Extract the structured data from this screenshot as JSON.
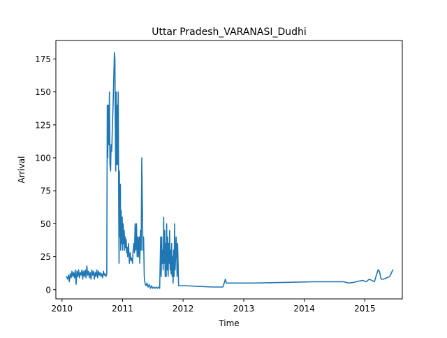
{
  "chart_data": {
    "type": "line",
    "title": "Uttar Pradesh_VARANASI_Dudhi",
    "xlabel": "Time",
    "ylabel": "Arrival",
    "xlim": [
      "2009-11-25",
      "2015-08-15"
    ],
    "ylim": [
      -7,
      189
    ],
    "grid": false,
    "legend": "none",
    "x_ticks": [
      {
        "date": "2010-01-01",
        "label": "2010"
      },
      {
        "date": "2011-01-01",
        "label": "2011"
      },
      {
        "date": "2012-01-01",
        "label": "2012"
      },
      {
        "date": "2013-01-01",
        "label": "2013"
      },
      {
        "date": "2014-01-01",
        "label": "2014"
      },
      {
        "date": "2015-01-01",
        "label": "2015"
      }
    ],
    "y_ticks": [
      0,
      25,
      50,
      75,
      100,
      125,
      150,
      175
    ],
    "series": [
      {
        "color": "#1f77b4",
        "points": [
          [
            "2010-01-28",
            10
          ],
          [
            "2010-02-04",
            8
          ],
          [
            "2010-02-09",
            11
          ],
          [
            "2010-02-14",
            6
          ],
          [
            "2010-02-19",
            12
          ],
          [
            "2010-02-25",
            9
          ],
          [
            "2010-03-02",
            14
          ],
          [
            "2010-03-07",
            10
          ],
          [
            "2010-03-12",
            13
          ],
          [
            "2010-03-17",
            9
          ],
          [
            "2010-03-22",
            15
          ],
          [
            "2010-03-27",
            4
          ],
          [
            "2010-04-01",
            14
          ],
          [
            "2010-04-06",
            10
          ],
          [
            "2010-04-11",
            15
          ],
          [
            "2010-04-16",
            9
          ],
          [
            "2010-04-21",
            13
          ],
          [
            "2010-04-26",
            11
          ],
          [
            "2010-05-01",
            15
          ],
          [
            "2010-05-06",
            8
          ],
          [
            "2010-05-11",
            14
          ],
          [
            "2010-05-16",
            10
          ],
          [
            "2010-05-21",
            15
          ],
          [
            "2010-05-26",
            9
          ],
          [
            "2010-05-31",
            18
          ],
          [
            "2010-06-05",
            11
          ],
          [
            "2010-06-10",
            14
          ],
          [
            "2010-06-15",
            9
          ],
          [
            "2010-06-20",
            13
          ],
          [
            "2010-06-25",
            8
          ],
          [
            "2010-06-30",
            15
          ],
          [
            "2010-07-05",
            11
          ],
          [
            "2010-07-10",
            14
          ],
          [
            "2010-07-15",
            8
          ],
          [
            "2010-07-20",
            13
          ],
          [
            "2010-07-25",
            10
          ],
          [
            "2010-07-30",
            15
          ],
          [
            "2010-08-04",
            9
          ],
          [
            "2010-08-09",
            14
          ],
          [
            "2010-08-14",
            11
          ],
          [
            "2010-08-19",
            13
          ],
          [
            "2010-08-24",
            10
          ],
          [
            "2010-08-29",
            12
          ],
          [
            "2010-09-03",
            9
          ],
          [
            "2010-09-08",
            14
          ],
          [
            "2010-09-13",
            11
          ],
          [
            "2010-09-18",
            12
          ],
          [
            "2010-09-23",
            10
          ],
          [
            "2010-09-28",
            12
          ],
          [
            "2010-10-01",
            140
          ],
          [
            "2010-10-04",
            100
          ],
          [
            "2010-10-08",
            140
          ],
          [
            "2010-10-11",
            110
          ],
          [
            "2010-10-14",
            150
          ],
          [
            "2010-10-17",
            95
          ],
          [
            "2010-10-21",
            90
          ],
          [
            "2010-10-24",
            110
          ],
          [
            "2010-10-28",
            105
          ],
          [
            "2010-11-01",
            125
          ],
          [
            "2010-11-05",
            140
          ],
          [
            "2010-11-09",
            160
          ],
          [
            "2010-11-13",
            180
          ],
          [
            "2010-11-16",
            175
          ],
          [
            "2010-11-18",
            130
          ],
          [
            "2010-11-21",
            90
          ],
          [
            "2010-11-24",
            150
          ],
          [
            "2010-11-27",
            95
          ],
          [
            "2010-11-30",
            140
          ],
          [
            "2010-12-03",
            95
          ],
          [
            "2010-12-06",
            150
          ],
          [
            "2010-12-09",
            60
          ],
          [
            "2010-12-11",
            20
          ],
          [
            "2010-12-13",
            90
          ],
          [
            "2010-12-16",
            40
          ],
          [
            "2010-12-19",
            80
          ],
          [
            "2010-12-21",
            30
          ],
          [
            "2010-12-24",
            60
          ],
          [
            "2010-12-27",
            35
          ],
          [
            "2010-12-30",
            55
          ],
          [
            "2011-01-02",
            30
          ],
          [
            "2011-01-05",
            50
          ],
          [
            "2011-01-08",
            35
          ],
          [
            "2011-01-11",
            45
          ],
          [
            "2011-01-14",
            30
          ],
          [
            "2011-01-17",
            40
          ],
          [
            "2011-01-20",
            32
          ],
          [
            "2011-01-23",
            38
          ],
          [
            "2011-01-26",
            28
          ],
          [
            "2011-01-29",
            32
          ],
          [
            "2011-02-01",
            25
          ],
          [
            "2011-02-06",
            35
          ],
          [
            "2011-02-11",
            20
          ],
          [
            "2011-02-16",
            28
          ],
          [
            "2011-02-21",
            22
          ],
          [
            "2011-02-26",
            24
          ],
          [
            "2011-03-02",
            20
          ],
          [
            "2011-03-06",
            30
          ],
          [
            "2011-03-10",
            35
          ],
          [
            "2011-03-14",
            28
          ],
          [
            "2011-03-18",
            50
          ],
          [
            "2011-03-22",
            30
          ],
          [
            "2011-03-26",
            50
          ],
          [
            "2011-03-30",
            25
          ],
          [
            "2011-04-03",
            40
          ],
          [
            "2011-04-07",
            25
          ],
          [
            "2011-04-11",
            40
          ],
          [
            "2011-04-15",
            20
          ],
          [
            "2011-04-19",
            45
          ],
          [
            "2011-04-23",
            30
          ],
          [
            "2011-04-27",
            100
          ],
          [
            "2011-05-01",
            60
          ],
          [
            "2011-05-04",
            30
          ],
          [
            "2011-05-08",
            40
          ],
          [
            "2011-05-12",
            10
          ],
          [
            "2011-05-16",
            5
          ],
          [
            "2011-05-22",
            3
          ],
          [
            "2011-05-28",
            5
          ],
          [
            "2011-06-04",
            2
          ],
          [
            "2011-06-11",
            4
          ],
          [
            "2011-06-18",
            1
          ],
          [
            "2011-06-25",
            3
          ],
          [
            "2011-07-02",
            1
          ],
          [
            "2011-07-09",
            2
          ],
          [
            "2011-07-16",
            1
          ],
          [
            "2011-07-23",
            2
          ],
          [
            "2011-07-30",
            1
          ],
          [
            "2011-08-06",
            2
          ],
          [
            "2011-08-13",
            1
          ],
          [
            "2011-08-19",
            40
          ],
          [
            "2011-08-22",
            10
          ],
          [
            "2011-08-25",
            40
          ],
          [
            "2011-08-28",
            20
          ],
          [
            "2011-08-31",
            30
          ],
          [
            "2011-09-03",
            15
          ],
          [
            "2011-09-06",
            55
          ],
          [
            "2011-09-09",
            20
          ],
          [
            "2011-09-12",
            45
          ],
          [
            "2011-09-15",
            10
          ],
          [
            "2011-09-18",
            35
          ],
          [
            "2011-09-21",
            10
          ],
          [
            "2011-09-24",
            50
          ],
          [
            "2011-09-27",
            15
          ],
          [
            "2011-09-30",
            40
          ],
          [
            "2011-10-03",
            10
          ],
          [
            "2011-10-06",
            35
          ],
          [
            "2011-10-09",
            20
          ],
          [
            "2011-10-12",
            45
          ],
          [
            "2011-10-15",
            15
          ],
          [
            "2011-10-18",
            30
          ],
          [
            "2011-10-21",
            12
          ],
          [
            "2011-10-24",
            35
          ],
          [
            "2011-10-27",
            10
          ],
          [
            "2011-10-30",
            25
          ],
          [
            "2011-11-02",
            5
          ],
          [
            "2011-11-05",
            30
          ],
          [
            "2011-11-08",
            10
          ],
          [
            "2011-11-11",
            50
          ],
          [
            "2011-11-14",
            15
          ],
          [
            "2011-11-17",
            25
          ],
          [
            "2011-11-20",
            40
          ],
          [
            "2011-11-23",
            30
          ],
          [
            "2011-11-26",
            10
          ],
          [
            "2011-11-29",
            35
          ],
          [
            "2011-12-02",
            20
          ],
          [
            "2011-12-05",
            3
          ],
          [
            "2012-01-15",
            3
          ],
          [
            "2012-04-01",
            2.5
          ],
          [
            "2012-07-01",
            2
          ],
          [
            "2012-08-28",
            2
          ],
          [
            "2012-09-05",
            5
          ],
          [
            "2012-09-12",
            8
          ],
          [
            "2012-09-18",
            5
          ],
          [
            "2013-03-01",
            5
          ],
          [
            "2013-09-01",
            5.5
          ],
          [
            "2014-03-01",
            6
          ],
          [
            "2014-08-25",
            6
          ],
          [
            "2014-09-25",
            5
          ],
          [
            "2014-10-25",
            5.5
          ],
          [
            "2014-11-25",
            6.5
          ],
          [
            "2014-12-20",
            7
          ],
          [
            "2015-01-10",
            6
          ],
          [
            "2015-01-28",
            8
          ],
          [
            "2015-02-12",
            7
          ],
          [
            "2015-02-28",
            6
          ],
          [
            "2015-03-14",
            12
          ],
          [
            "2015-03-22",
            15
          ],
          [
            "2015-03-30",
            14
          ],
          [
            "2015-04-09",
            8
          ],
          [
            "2015-04-25",
            8
          ],
          [
            "2015-05-14",
            9
          ],
          [
            "2015-05-31",
            10
          ],
          [
            "2015-06-15",
            14
          ],
          [
            "2015-06-20",
            15
          ]
        ]
      }
    ]
  }
}
